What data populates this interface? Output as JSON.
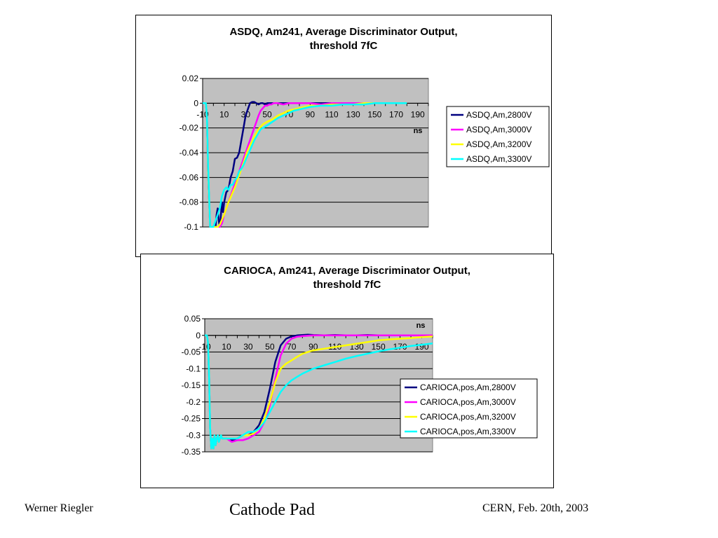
{
  "slide": {
    "footer_left": "Werner Riegler",
    "footer_center": "Cathode Pad",
    "footer_right": "CERN, Feb. 20th, 2003"
  },
  "chart_data": [
    {
      "type": "line",
      "title_line1": "ASDQ, Am241, Average Discriminator Output,",
      "title_line2": "threshold 7fC",
      "xlabel": "ns",
      "ylabel": "",
      "xlim": [
        -10,
        200
      ],
      "ylim": [
        -0.1,
        0.02
      ],
      "xticks": [
        -10,
        10,
        30,
        50,
        70,
        90,
        110,
        130,
        150,
        170,
        190
      ],
      "yticks": [
        0.02,
        0,
        -0.02,
        -0.04,
        -0.06,
        -0.08,
        -0.1
      ],
      "ytick_labels": [
        "0.02",
        "0",
        "-0.02",
        "-0.04",
        "-0.06",
        "-0.08",
        "-0.1"
      ],
      "grid": "horizontal",
      "background": "#c0c0c0",
      "legend_position": "right",
      "series": [
        {
          "name": "ASDQ,Am,2800V",
          "color": "#000080",
          "x": [
            -10,
            -7,
            -6,
            -5,
            -3,
            -1,
            0,
            1,
            2,
            3,
            4,
            5,
            6,
            7,
            8,
            9,
            10,
            12,
            14,
            16,
            18,
            20,
            22,
            24,
            26,
            28,
            30,
            32,
            34,
            36,
            38,
            40,
            42,
            44,
            46,
            48,
            50,
            55,
            60,
            65,
            70,
            80,
            90,
            100,
            110,
            120,
            130,
            140,
            150,
            160,
            170,
            180
          ],
          "y": [
            0,
            0,
            -0.01,
            -0.055,
            -0.1,
            -0.1,
            -0.1,
            -0.1,
            -0.1,
            -0.09,
            -0.085,
            -0.095,
            -0.1,
            -0.09,
            -0.08,
            -0.088,
            -0.08,
            -0.072,
            -0.07,
            -0.06,
            -0.055,
            -0.045,
            -0.044,
            -0.04,
            -0.03,
            -0.02,
            -0.01,
            -0.005,
            0,
            0.001,
            0.001,
            0,
            -0.001,
            0,
            0,
            -0.001,
            0,
            0,
            0,
            0,
            0,
            0,
            0,
            0,
            0,
            0,
            0,
            0,
            0,
            0,
            0,
            0
          ]
        },
        {
          "name": "ASDQ,Am,3000V",
          "color": "#ff00ff",
          "x": [
            -10,
            -7,
            -6,
            -5,
            -3,
            0,
            2,
            4,
            6,
            8,
            10,
            12,
            14,
            16,
            18,
            20,
            22,
            24,
            26,
            28,
            30,
            32,
            34,
            36,
            38,
            40,
            42,
            44,
            46,
            48,
            50,
            52,
            54,
            56,
            58,
            60,
            65,
            70,
            80,
            90,
            100,
            110,
            120,
            130,
            140,
            150,
            160,
            170,
            180
          ],
          "y": [
            0,
            0,
            -0.01,
            -0.055,
            -0.1,
            -0.1,
            -0.1,
            -0.1,
            -0.1,
            -0.097,
            -0.09,
            -0.085,
            -0.08,
            -0.075,
            -0.07,
            -0.065,
            -0.06,
            -0.055,
            -0.05,
            -0.045,
            -0.04,
            -0.035,
            -0.03,
            -0.025,
            -0.02,
            -0.015,
            -0.01,
            -0.006,
            -0.004,
            -0.002,
            -0.002,
            -0.001,
            -0.001,
            0,
            0,
            0,
            -0.001,
            0,
            0,
            0,
            -0.001,
            0,
            0,
            0,
            0,
            0,
            0,
            0,
            0
          ]
        },
        {
          "name": "ASDQ,Am,3200V",
          "color": "#ffff00",
          "x": [
            -10,
            -7,
            -6,
            -5,
            -3,
            0,
            2,
            4,
            6,
            8,
            10,
            12,
            14,
            16,
            18,
            20,
            22,
            24,
            26,
            28,
            30,
            32,
            34,
            36,
            38,
            40,
            42,
            44,
            46,
            48,
            50,
            55,
            60,
            65,
            70,
            75,
            80,
            85,
            90,
            100,
            110,
            120,
            130,
            140,
            150,
            160,
            170,
            180
          ],
          "y": [
            0,
            0,
            -0.01,
            -0.055,
            -0.1,
            -0.1,
            -0.1,
            -0.1,
            -0.098,
            -0.094,
            -0.09,
            -0.085,
            -0.08,
            -0.076,
            -0.072,
            -0.068,
            -0.063,
            -0.058,
            -0.053,
            -0.048,
            -0.043,
            -0.038,
            -0.034,
            -0.031,
            -0.027,
            -0.024,
            -0.021,
            -0.019,
            -0.017,
            -0.016,
            -0.015,
            -0.013,
            -0.01,
            -0.008,
            -0.006,
            -0.005,
            -0.004,
            -0.003,
            -0.002,
            -0.002,
            -0.001,
            -0.001,
            -0.001,
            0,
            0,
            0,
            0,
            0
          ]
        },
        {
          "name": "ASDQ,Am,3300V",
          "color": "#00ffff",
          "x": [
            -10,
            -7,
            -6,
            -5,
            -3,
            0,
            2,
            4,
            6,
            8,
            10,
            12,
            14,
            16,
            18,
            20,
            22,
            24,
            26,
            28,
            30,
            32,
            34,
            36,
            38,
            40,
            42,
            44,
            46,
            48,
            50,
            55,
            60,
            65,
            70,
            75,
            80,
            85,
            90,
            100,
            110,
            120,
            130,
            140,
            150,
            160,
            170,
            180
          ],
          "y": [
            0,
            0,
            -0.01,
            -0.05,
            -0.1,
            -0.1,
            -0.095,
            -0.09,
            -0.085,
            -0.075,
            -0.07,
            -0.068,
            -0.07,
            -0.066,
            -0.066,
            -0.062,
            -0.06,
            -0.055,
            -0.053,
            -0.05,
            -0.046,
            -0.042,
            -0.038,
            -0.034,
            -0.03,
            -0.027,
            -0.024,
            -0.021,
            -0.02,
            -0.019,
            -0.018,
            -0.015,
            -0.012,
            -0.01,
            -0.008,
            -0.006,
            -0.005,
            -0.004,
            -0.003,
            -0.002,
            -0.002,
            -0.001,
            -0.001,
            -0.001,
            0,
            0,
            0,
            0
          ]
        }
      ]
    },
    {
      "type": "line",
      "title_line1": "CARIOCA, Am241, Average Discriminator Output,",
      "title_line2": "threshold 7fC",
      "xlabel": "ns",
      "ylabel": "",
      "xlim": [
        -10,
        200
      ],
      "ylim": [
        -0.35,
        0.05
      ],
      "xticks": [
        -10,
        10,
        30,
        50,
        70,
        90,
        110,
        130,
        150,
        170,
        190
      ],
      "yticks": [
        0.05,
        0,
        -0.05,
        -0.1,
        -0.15,
        -0.2,
        -0.25,
        -0.3,
        -0.35
      ],
      "ytick_labels": [
        "0.05",
        "0",
        "-0.05",
        "-0.1",
        "-0.15",
        "-0.2",
        "-0.25",
        "-0.3",
        "-0.35"
      ],
      "grid": "horizontal",
      "background": "#c0c0c0",
      "legend_position": "bottom-right",
      "series": [
        {
          "name": "CARIOCA,pos,Am,2800V",
          "color": "#000080",
          "x": [
            -10,
            -8,
            -7,
            -6,
            -5,
            -4,
            -3,
            -2,
            -1,
            0,
            1,
            2,
            3,
            4,
            5,
            6,
            8,
            10,
            15,
            20,
            25,
            30,
            35,
            40,
            45,
            50,
            55,
            60,
            65,
            70,
            75,
            80,
            85,
            90,
            100,
            110,
            120,
            130,
            140,
            150,
            160,
            170,
            180,
            190,
            200
          ],
          "y": [
            0,
            0,
            -0.02,
            -0.12,
            -0.28,
            -0.34,
            -0.31,
            -0.34,
            -0.3,
            -0.33,
            -0.31,
            -0.3,
            -0.32,
            -0.31,
            -0.3,
            -0.31,
            -0.31,
            -0.31,
            -0.315,
            -0.31,
            -0.3,
            -0.3,
            -0.29,
            -0.27,
            -0.23,
            -0.16,
            -0.08,
            -0.03,
            -0.01,
            -0.003,
            0,
            0.001,
            0.002,
            0.001,
            0,
            0.001,
            0,
            0,
            0.001,
            0,
            0,
            0,
            0,
            0,
            0
          ]
        },
        {
          "name": "CARIOCA,pos,Am,3000V",
          "color": "#ff00ff",
          "x": [
            -10,
            -8,
            -7,
            -6,
            -5,
            -4,
            -3,
            -2,
            -1,
            0,
            1,
            2,
            3,
            4,
            5,
            6,
            8,
            10,
            15,
            20,
            25,
            30,
            35,
            40,
            45,
            50,
            55,
            60,
            65,
            70,
            75,
            80,
            85,
            90,
            95,
            100,
            110,
            120,
            130,
            140,
            150,
            160,
            170,
            180,
            190,
            200
          ],
          "y": [
            0,
            0,
            -0.02,
            -0.12,
            -0.28,
            -0.34,
            -0.31,
            -0.34,
            -0.3,
            -0.33,
            -0.31,
            -0.3,
            -0.32,
            -0.31,
            -0.3,
            -0.31,
            -0.31,
            -0.31,
            -0.32,
            -0.315,
            -0.315,
            -0.31,
            -0.3,
            -0.29,
            -0.26,
            -0.21,
            -0.13,
            -0.06,
            -0.025,
            -0.01,
            -0.004,
            -0.002,
            -0.001,
            0,
            0,
            0,
            0,
            0,
            0,
            0,
            0,
            0,
            0,
            0,
            0,
            0
          ]
        },
        {
          "name": "CARIOCA,pos,Am,3200V",
          "color": "#ffff00",
          "x": [
            -10,
            -8,
            -7,
            -6,
            -5,
            -4,
            -3,
            -2,
            -1,
            0,
            1,
            2,
            3,
            4,
            5,
            6,
            8,
            10,
            15,
            20,
            25,
            30,
            35,
            40,
            45,
            50,
            55,
            60,
            65,
            70,
            75,
            80,
            90,
            100,
            110,
            120,
            130,
            140,
            150,
            160,
            170,
            180,
            190,
            200
          ],
          "y": [
            0,
            0,
            -0.02,
            -0.12,
            -0.28,
            -0.34,
            -0.31,
            -0.34,
            -0.3,
            -0.33,
            -0.31,
            -0.3,
            -0.32,
            -0.31,
            -0.3,
            -0.31,
            -0.31,
            -0.31,
            -0.31,
            -0.31,
            -0.3,
            -0.3,
            -0.295,
            -0.28,
            -0.25,
            -0.2,
            -0.14,
            -0.1,
            -0.085,
            -0.075,
            -0.065,
            -0.055,
            -0.045,
            -0.04,
            -0.035,
            -0.03,
            -0.025,
            -0.02,
            -0.015,
            -0.012,
            -0.01,
            -0.008,
            -0.005,
            -0.003
          ]
        },
        {
          "name": "CARIOCA,pos,Am,3300V",
          "color": "#00ffff",
          "x": [
            -10,
            -8,
            -7,
            -6,
            -5,
            -4,
            -3,
            -2,
            -1,
            0,
            1,
            2,
            3,
            4,
            5,
            6,
            8,
            10,
            15,
            20,
            25,
            30,
            35,
            40,
            45,
            50,
            55,
            60,
            65,
            70,
            75,
            80,
            90,
            100,
            110,
            120,
            130,
            140,
            150,
            160,
            170,
            180,
            190,
            200
          ],
          "y": [
            0,
            0,
            -0.02,
            -0.12,
            -0.28,
            -0.34,
            -0.31,
            -0.34,
            -0.3,
            -0.33,
            -0.31,
            -0.3,
            -0.32,
            -0.31,
            -0.3,
            -0.31,
            -0.31,
            -0.31,
            -0.31,
            -0.31,
            -0.3,
            -0.29,
            -0.29,
            -0.28,
            -0.26,
            -0.23,
            -0.2,
            -0.17,
            -0.15,
            -0.135,
            -0.125,
            -0.115,
            -0.1,
            -0.09,
            -0.08,
            -0.07,
            -0.062,
            -0.055,
            -0.048,
            -0.042,
            -0.037,
            -0.032,
            -0.028,
            -0.024
          ]
        }
      ]
    }
  ]
}
